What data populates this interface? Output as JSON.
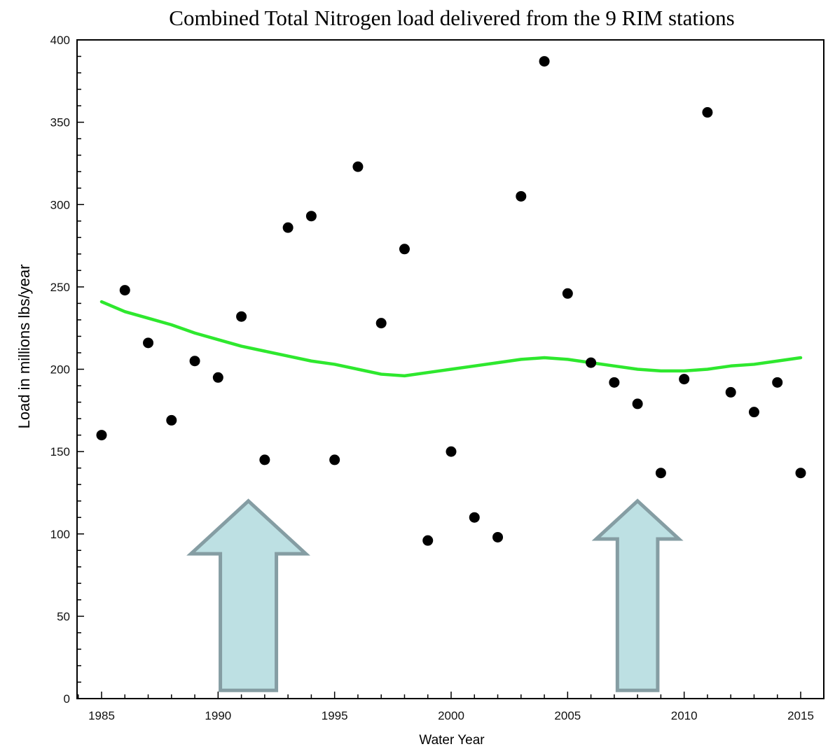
{
  "chart_data": {
    "type": "scatter",
    "title": "Combined Total Nitrogen load delivered from the 9 RIM stations",
    "xlabel": "Water Year",
    "ylabel": "Load in millions lbs/year",
    "xlim": [
      1984,
      2016
    ],
    "ylim": [
      0,
      400
    ],
    "x_ticks": [
      1985,
      1990,
      1995,
      2000,
      2005,
      2010,
      2015
    ],
    "y_ticks": [
      0,
      50,
      100,
      150,
      200,
      250,
      300,
      350,
      400
    ],
    "grid": false,
    "series": [
      {
        "type": "scatter",
        "color": "#000000",
        "points": [
          {
            "x": 1985,
            "y": 160
          },
          {
            "x": 1986,
            "y": 248
          },
          {
            "x": 1987,
            "y": 216
          },
          {
            "x": 1988,
            "y": 169
          },
          {
            "x": 1989,
            "y": 205
          },
          {
            "x": 1990,
            "y": 195
          },
          {
            "x": 1991,
            "y": 232
          },
          {
            "x": 1992,
            "y": 145
          },
          {
            "x": 1993,
            "y": 286
          },
          {
            "x": 1994,
            "y": 293
          },
          {
            "x": 1995,
            "y": 145
          },
          {
            "x": 1996,
            "y": 323
          },
          {
            "x": 1997,
            "y": 228
          },
          {
            "x": 1998,
            "y": 273
          },
          {
            "x": 1999,
            "y": 96
          },
          {
            "x": 2000,
            "y": 150
          },
          {
            "x": 2001,
            "y": 110
          },
          {
            "x": 2002,
            "y": 98
          },
          {
            "x": 2003,
            "y": 305
          },
          {
            "x": 2004,
            "y": 387
          },
          {
            "x": 2005,
            "y": 246
          },
          {
            "x": 2006,
            "y": 204
          },
          {
            "x": 2007,
            "y": 192
          },
          {
            "x": 2008,
            "y": 179
          },
          {
            "x": 2009,
            "y": 137
          },
          {
            "x": 2010,
            "y": 194
          },
          {
            "x": 2011,
            "y": 356
          },
          {
            "x": 2012,
            "y": 186
          },
          {
            "x": 2013,
            "y": 174
          },
          {
            "x": 2014,
            "y": 192
          },
          {
            "x": 2015,
            "y": 137
          }
        ]
      },
      {
        "type": "line",
        "color": "#2ee82e",
        "points": [
          {
            "x": 1985,
            "y": 241
          },
          {
            "x": 1986,
            "y": 235
          },
          {
            "x": 1987,
            "y": 231
          },
          {
            "x": 1988,
            "y": 227
          },
          {
            "x": 1989,
            "y": 222
          },
          {
            "x": 1990,
            "y": 218
          },
          {
            "x": 1991,
            "y": 214
          },
          {
            "x": 1992,
            "y": 211
          },
          {
            "x": 1993,
            "y": 208
          },
          {
            "x": 1994,
            "y": 205
          },
          {
            "x": 1995,
            "y": 203
          },
          {
            "x": 1996,
            "y": 200
          },
          {
            "x": 1997,
            "y": 197
          },
          {
            "x": 1998,
            "y": 196
          },
          {
            "x": 1999,
            "y": 198
          },
          {
            "x": 2000,
            "y": 200
          },
          {
            "x": 2001,
            "y": 202
          },
          {
            "x": 2002,
            "y": 204
          },
          {
            "x": 2003,
            "y": 206
          },
          {
            "x": 2004,
            "y": 207
          },
          {
            "x": 2005,
            "y": 206
          },
          {
            "x": 2006,
            "y": 204
          },
          {
            "x": 2007,
            "y": 202
          },
          {
            "x": 2008,
            "y": 200
          },
          {
            "x": 2009,
            "y": 199
          },
          {
            "x": 2010,
            "y": 199
          },
          {
            "x": 2011,
            "y": 200
          },
          {
            "x": 2012,
            "y": 202
          },
          {
            "x": 2013,
            "y": 203
          },
          {
            "x": 2014,
            "y": 205
          },
          {
            "x": 2015,
            "y": 207
          }
        ]
      }
    ],
    "annotations": [
      {
        "type": "arrow-up",
        "x_center": 1991.3,
        "y_tip": 120,
        "y_base": 5,
        "fill": "#bde0e3",
        "stroke": "#859da3"
      },
      {
        "type": "arrow-up",
        "x_center": 2008.0,
        "y_tip": 120,
        "y_base": 5,
        "fill": "#bde0e3",
        "stroke": "#859da3"
      }
    ]
  }
}
